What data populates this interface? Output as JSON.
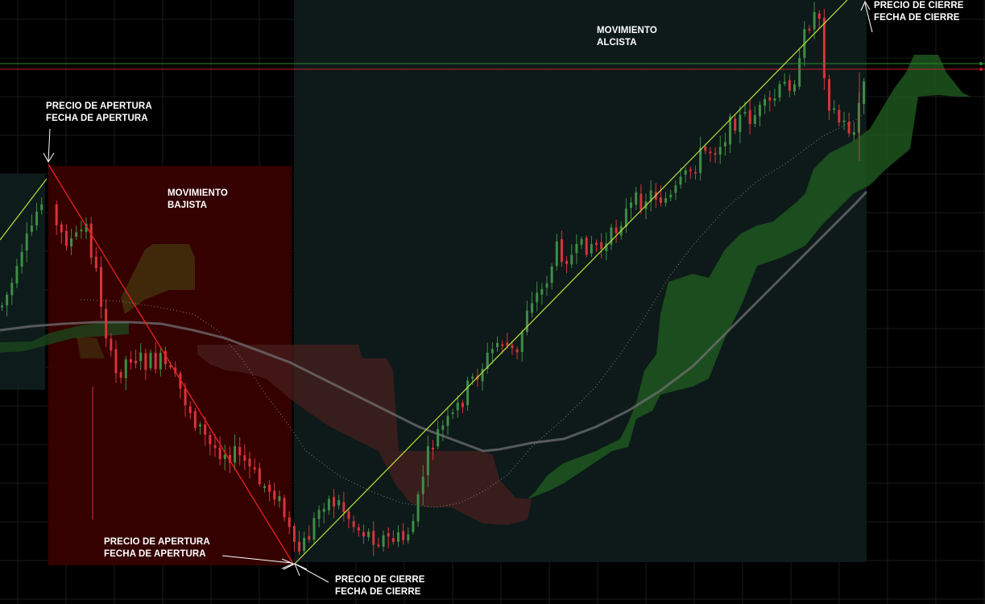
{
  "annotations": {
    "bear_open": {
      "line1": "PRECIO DE APERTURA",
      "line2": "FECHA DE APERTURA"
    },
    "bear_label": {
      "line1": "MOVIMIENTO",
      "line2": "BAJISTA"
    },
    "bull_open": {
      "line1": "PRECIO DE APERTURA",
      "line2": "FECHA  DE APERTURA"
    },
    "bull_close_bottom": {
      "line1": "PRECIO DE CIERRE",
      "line2": "FECHA DE CIERRE"
    },
    "bull_label": {
      "line1": "MOVIMIENTO",
      "line2": "ALCISTA"
    },
    "bull_close_top": {
      "line1": "PRECIO DE CIERRE",
      "line2": "FECHA DE CIERRE"
    }
  },
  "colors": {
    "background": "#000000",
    "grid": "#1a1a1a",
    "bear_zone": "#3a0000",
    "bull_zone": "#0f1a1a",
    "candle_up": "#3e8e45",
    "candle_down": "#d8343a",
    "trend_down": "#e0201c",
    "trend_up": "#b8e23c",
    "cloud_bull": "#1f5a1f",
    "cloud_bear": "#4a1f1f",
    "ma_slow": "#707070",
    "h_line_green": "#2b8c2b",
    "h_line_red": "#c0202a"
  },
  "chart_data": {
    "type": "candlestick",
    "overlays": [
      "ichimoku-cloud",
      "moving-average",
      "dotted-moving-average",
      "trend-lines",
      "horizontal-levels"
    ],
    "grid": true,
    "axes_shown": false,
    "series": [
      {
        "name": "",
        "kind": "candles"
      },
      {
        "name": "",
        "kind": "ichimoku-cloud"
      },
      {
        "name": "",
        "kind": "moving-average"
      }
    ],
    "moves": [
      {
        "direction": "down",
        "from_candle": 15,
        "to_candle": 92
      },
      {
        "direction": "up",
        "from_candle": 92,
        "to_candle": 176
      }
    ]
  }
}
